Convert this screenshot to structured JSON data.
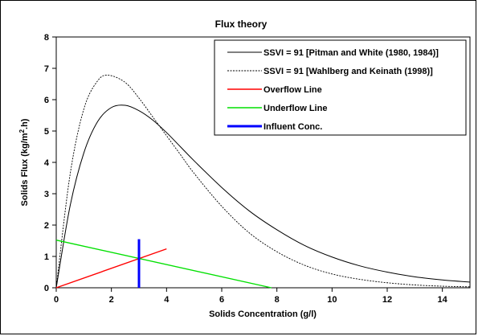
{
  "chart_data": {
    "type": "line",
    "title": "Flux theory",
    "xlabel": "Solids Concentration (g/l)",
    "ylabel_main": "Solids  Flux (kg/m",
    "ylabel_sup": "2",
    "ylabel_end": ".h)",
    "xlim": [
      0,
      15
    ],
    "ylim": [
      0,
      8
    ],
    "xticks": [
      0,
      2,
      4,
      6,
      8,
      10,
      12,
      14
    ],
    "yticks": [
      0,
      1,
      2,
      3,
      4,
      5,
      6,
      7,
      8
    ],
    "grid": false,
    "legend_position": "top-right",
    "series": [
      {
        "name": "SSVI = 91 [Pitman and White (1980, 1984)]",
        "color": "#000000",
        "style": "solid",
        "x": [
          0,
          0.5,
          1.0,
          1.5,
          2.0,
          2.5,
          3.0,
          3.5,
          4.0,
          4.5,
          5.0,
          6.0,
          7.0,
          8.0,
          9.0,
          10.0,
          11.0,
          12.0,
          13.0,
          14.0,
          15.0
        ],
        "y": [
          0,
          2.6,
          4.3,
          5.3,
          5.75,
          5.82,
          5.65,
          5.35,
          4.95,
          4.5,
          4.05,
          3.2,
          2.45,
          1.85,
          1.35,
          0.98,
          0.7,
          0.5,
          0.35,
          0.25,
          0.18
        ]
      },
      {
        "name": "SSVI = 91 [Wahlberg and Keinath (1998)]",
        "color": "#000000",
        "style": "dotted",
        "x": [
          0,
          0.5,
          1.0,
          1.5,
          1.9,
          2.5,
          3.0,
          3.5,
          4.0,
          4.5,
          5.0,
          6.0,
          7.0,
          8.0,
          9.0,
          10.0,
          11.0,
          12.0,
          13.0,
          14.0,
          15.0
        ],
        "y": [
          0,
          3.6,
          5.7,
          6.6,
          6.78,
          6.55,
          6.05,
          5.45,
          4.85,
          4.25,
          3.65,
          2.6,
          1.75,
          1.15,
          0.72,
          0.44,
          0.27,
          0.16,
          0.09,
          0.05,
          0.03
        ]
      },
      {
        "name": "Overflow Line",
        "color": "#ff0000",
        "style": "solid",
        "x": [
          0,
          4
        ],
        "y": [
          0,
          1.24
        ]
      },
      {
        "name": "Underflow Line",
        "color": "#00e000",
        "style": "solid",
        "x": [
          0,
          7.8
        ],
        "y": [
          1.52,
          0
        ]
      },
      {
        "name": "Influent Conc.",
        "color": "#0000ff",
        "style": "bold",
        "x": [
          3,
          3
        ],
        "y": [
          0,
          1.55
        ]
      }
    ]
  }
}
